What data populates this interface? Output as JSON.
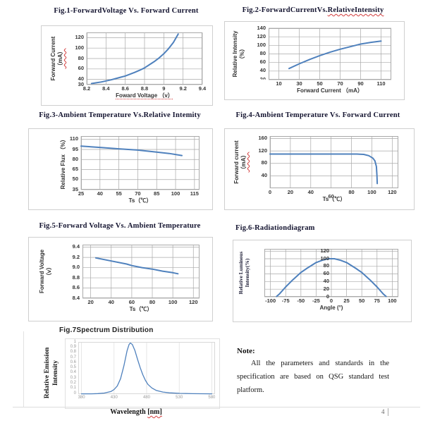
{
  "colors": {
    "line": "#4f81bd",
    "grid": "#a9a9a9",
    "squiggle": "#d43c3c"
  },
  "footer": {
    "page_number": "4"
  },
  "note": {
    "heading": "Note:",
    "body": "All the parameters and standards in the specification are based on QSG standard test platform."
  },
  "chart_data": [
    {
      "id": "fig1",
      "type": "line",
      "title_parts": [
        "Fig.1-ForwardVoltage Vs. Forward Current"
      ],
      "xlabel_parts": [
        "Foward Voltage （v）"
      ],
      "ylabel_lines": [
        "Forward Current",
        "（mA）"
      ],
      "xlim": [
        8.2,
        9.4
      ],
      "ylim": [
        30,
        130
      ],
      "xticks": [
        8.2,
        8.4,
        8.6,
        8.8,
        9,
        9.2,
        9.4
      ],
      "xtick_labels": [
        "8.2",
        "8.4",
        "8.6",
        "8.8",
        "9",
        "9.2",
        "9.4"
      ],
      "yticks": [
        30,
        40,
        60,
        80,
        100,
        120
      ],
      "ytick_labels": [
        "30",
        "40",
        "60",
        "80",
        "100",
        "120"
      ],
      "grid": "both",
      "points": [
        [
          8.25,
          32
        ],
        [
          8.3,
          33.5
        ],
        [
          8.35,
          35
        ],
        [
          8.4,
          37
        ],
        [
          8.45,
          39
        ],
        [
          8.5,
          41.5
        ],
        [
          8.55,
          44
        ],
        [
          8.6,
          46.5
        ],
        [
          8.65,
          50
        ],
        [
          8.7,
          53.5
        ],
        [
          8.75,
          57.5
        ],
        [
          8.8,
          62
        ],
        [
          8.85,
          68
        ],
        [
          8.9,
          74
        ],
        [
          8.95,
          81
        ],
        [
          9.0,
          89
        ],
        [
          9.05,
          99
        ],
        [
          9.1,
          111
        ],
        [
          9.15,
          127
        ]
      ]
    },
    {
      "id": "fig2",
      "type": "line",
      "title_parts": [
        "Fig.2-ForwardCurrentVs.",
        "RelativeIntensity"
      ],
      "xlabel_parts": [
        "Forward Current （mA）"
      ],
      "ylabel_lines": [
        "Relative Intensity",
        "（%）"
      ],
      "xlim": [
        0,
        120
      ],
      "ylim": [
        20,
        140
      ],
      "xticks": [
        10,
        30,
        50,
        70,
        90,
        110
      ],
      "xtick_labels": [
        "10",
        "30",
        "50",
        "70",
        "90",
        "110"
      ],
      "yticks": [
        20,
        40,
        60,
        80,
        100,
        120,
        140
      ],
      "ytick_labels": [
        "20",
        "40",
        "60",
        "80",
        "100",
        "120",
        "140"
      ],
      "clip_ytick_idx": 0,
      "grid": "both",
      "points": [
        [
          20,
          46
        ],
        [
          30,
          57
        ],
        [
          40,
          67
        ],
        [
          50,
          76
        ],
        [
          60,
          84
        ],
        [
          70,
          91
        ],
        [
          80,
          97
        ],
        [
          90,
          103
        ],
        [
          100,
          107
        ],
        [
          110,
          110
        ]
      ]
    },
    {
      "id": "fig3",
      "type": "line",
      "title_parts": [
        "Fig.3-Ambient Temperature Vs.Relative Intemity"
      ],
      "xlabel_parts": [
        "Ts（℃）"
      ],
      "ylabel_lines": [
        "Relative Flux （%）"
      ],
      "xlim": [
        25,
        119
      ],
      "ylim": [
        35,
        115
      ],
      "xticks": [
        25,
        40,
        55,
        70,
        85,
        100,
        115
      ],
      "xtick_labels": [
        "25",
        "40",
        "55",
        "70",
        "85",
        "100",
        "115"
      ],
      "yticks": [
        35,
        50,
        65,
        80,
        95,
        110
      ],
      "ytick_labels": [
        "35",
        "50",
        "65",
        "80",
        "95",
        "110"
      ],
      "grid": "both",
      "points": [
        [
          25,
          100
        ],
        [
          40,
          98
        ],
        [
          55,
          96
        ],
        [
          70,
          94
        ],
        [
          85,
          91
        ],
        [
          95,
          89
        ],
        [
          105,
          86
        ]
      ]
    },
    {
      "id": "fig4",
      "type": "line",
      "title_parts": [
        "Fig.4-Ambient Temperature Vs. Forward Current"
      ],
      "xlabel_parts": [
        "Ts（℃）"
      ],
      "ylabel_lines": [
        "Forward current",
        "（mA）"
      ],
      "xlim": [
        0,
        126
      ],
      "ylim": [
        0,
        168
      ],
      "xticks": [
        0,
        20,
        40,
        60,
        80,
        100,
        120
      ],
      "xtick_labels": [
        "0",
        "20",
        "40",
        "60",
        "80",
        "100",
        "120"
      ],
      "x_stagger_idx": 3,
      "yticks": [
        40,
        80,
        120,
        160
      ],
      "ytick_labels": [
        "40",
        "80",
        "120",
        "160"
      ],
      "grid": "both",
      "points": [
        [
          0,
          110
        ],
        [
          85,
          110
        ],
        [
          92,
          109
        ],
        [
          97,
          105
        ],
        [
          101,
          97
        ],
        [
          103,
          88
        ],
        [
          104.5,
          70
        ],
        [
          105,
          40
        ],
        [
          105.3,
          15
        ]
      ]
    },
    {
      "id": "fig5",
      "type": "line",
      "title_parts": [
        "Fig.5-Forward Voltage Vs. Ambient Temperature"
      ],
      "xlabel_parts": [
        "Ts（℃）"
      ],
      "ylabel_lines": [
        "Forward Voltage",
        "（v）"
      ],
      "xlim": [
        12,
        126
      ],
      "ylim": [
        8.4,
        9.45
      ],
      "xticks": [
        20,
        40,
        60,
        80,
        100,
        120
      ],
      "xtick_labels": [
        "20",
        "40",
        "60",
        "80",
        "100",
        "120"
      ],
      "yticks": [
        8.4,
        8.6,
        8.8,
        9.0,
        9.2,
        9.4
      ],
      "ytick_labels": [
        "8.4",
        "8.6",
        "8.8",
        "9.0",
        "9.2",
        "9.4"
      ],
      "grid": "both",
      "points": [
        [
          25,
          9.19
        ],
        [
          40,
          9.13
        ],
        [
          55,
          9.07
        ],
        [
          60,
          9.04
        ],
        [
          70,
          9.0
        ],
        [
          80,
          8.97
        ],
        [
          90,
          8.93
        ],
        [
          100,
          8.9
        ],
        [
          105,
          8.88
        ]
      ]
    },
    {
      "id": "fig6",
      "type": "line",
      "title_parts": [
        "Fig.6-Radiationdiagram"
      ],
      "xlabel_parts": [
        "Angle (°)"
      ],
      "ylabel_lines": [
        "Relative Luminous",
        "Intensity(%)"
      ],
      "xlim": [
        -110,
        110
      ],
      "ylim": [
        0,
        126
      ],
      "xticks": [
        -100,
        -75,
        -50,
        -25,
        0,
        25,
        50,
        75,
        100
      ],
      "xtick_labels": [
        "-100",
        "-75",
        "-50",
        "-25",
        "0",
        "25",
        "50",
        "75",
        "100"
      ],
      "yticks": [
        0,
        20,
        40,
        60,
        80,
        100,
        120
      ],
      "ytick_labels": [
        "0",
        "20",
        "40",
        "60",
        "80",
        "100",
        "120"
      ],
      "y_labels_at_center": 0,
      "grid": "both",
      "points": [
        [
          -90,
          1
        ],
        [
          -85,
          8
        ],
        [
          -75,
          26
        ],
        [
          -65,
          42
        ],
        [
          -50,
          64
        ],
        [
          -40,
          75
        ],
        [
          -25,
          90
        ],
        [
          -15,
          96
        ],
        [
          -5,
          100
        ],
        [
          0,
          100
        ],
        [
          5,
          100
        ],
        [
          15,
          96
        ],
        [
          25,
          90
        ],
        [
          40,
          75
        ],
        [
          50,
          64
        ],
        [
          65,
          42
        ],
        [
          75,
          26
        ],
        [
          85,
          8
        ],
        [
          90,
          1
        ]
      ]
    },
    {
      "id": "fig7",
      "type": "line",
      "title_parts": [
        "Fig.7Spectrum Distribution"
      ],
      "xlabel_parts": [
        "Wavelength ",
        "[nm]"
      ],
      "ylabel_lines": [
        "Relative Emission",
        "Intensity"
      ],
      "xlim": [
        375,
        585
      ],
      "ylim": [
        0,
        1.02
      ],
      "xticks": [
        380,
        430,
        480,
        530,
        580
      ],
      "xtick_labels": [
        "380",
        "430",
        "480",
        "530",
        "580"
      ],
      "yticks": [
        0,
        0.1,
        0.2,
        0.3,
        0.4,
        0.5,
        0.6,
        0.7,
        0.8,
        0.9,
        1
      ],
      "ytick_labels": [
        "0",
        "0.1",
        "0.2",
        "0.3",
        "0.4",
        "0.5",
        "0.6",
        "0.7",
        "0.8",
        "0.9",
        "1"
      ],
      "tick_class": "tiny",
      "grid": "x",
      "grid_color": "#dcdcdc",
      "border_color": "#d8d8d8",
      "line_width": 1.3,
      "points": [
        [
          380,
          0.005
        ],
        [
          395,
          0.005
        ],
        [
          405,
          0.01
        ],
        [
          415,
          0.02
        ],
        [
          425,
          0.05
        ],
        [
          430,
          0.09
        ],
        [
          435,
          0.16
        ],
        [
          440,
          0.3
        ],
        [
          445,
          0.55
        ],
        [
          450,
          0.85
        ],
        [
          453,
          0.97
        ],
        [
          455,
          1.0
        ],
        [
          458,
          0.97
        ],
        [
          462,
          0.85
        ],
        [
          466,
          0.68
        ],
        [
          470,
          0.52
        ],
        [
          474,
          0.38
        ],
        [
          478,
          0.27
        ],
        [
          482,
          0.19
        ],
        [
          488,
          0.12
        ],
        [
          495,
          0.07
        ],
        [
          505,
          0.04
        ],
        [
          515,
          0.025
        ],
        [
          530,
          0.015
        ],
        [
          550,
          0.008
        ],
        [
          580,
          0.005
        ]
      ]
    }
  ]
}
